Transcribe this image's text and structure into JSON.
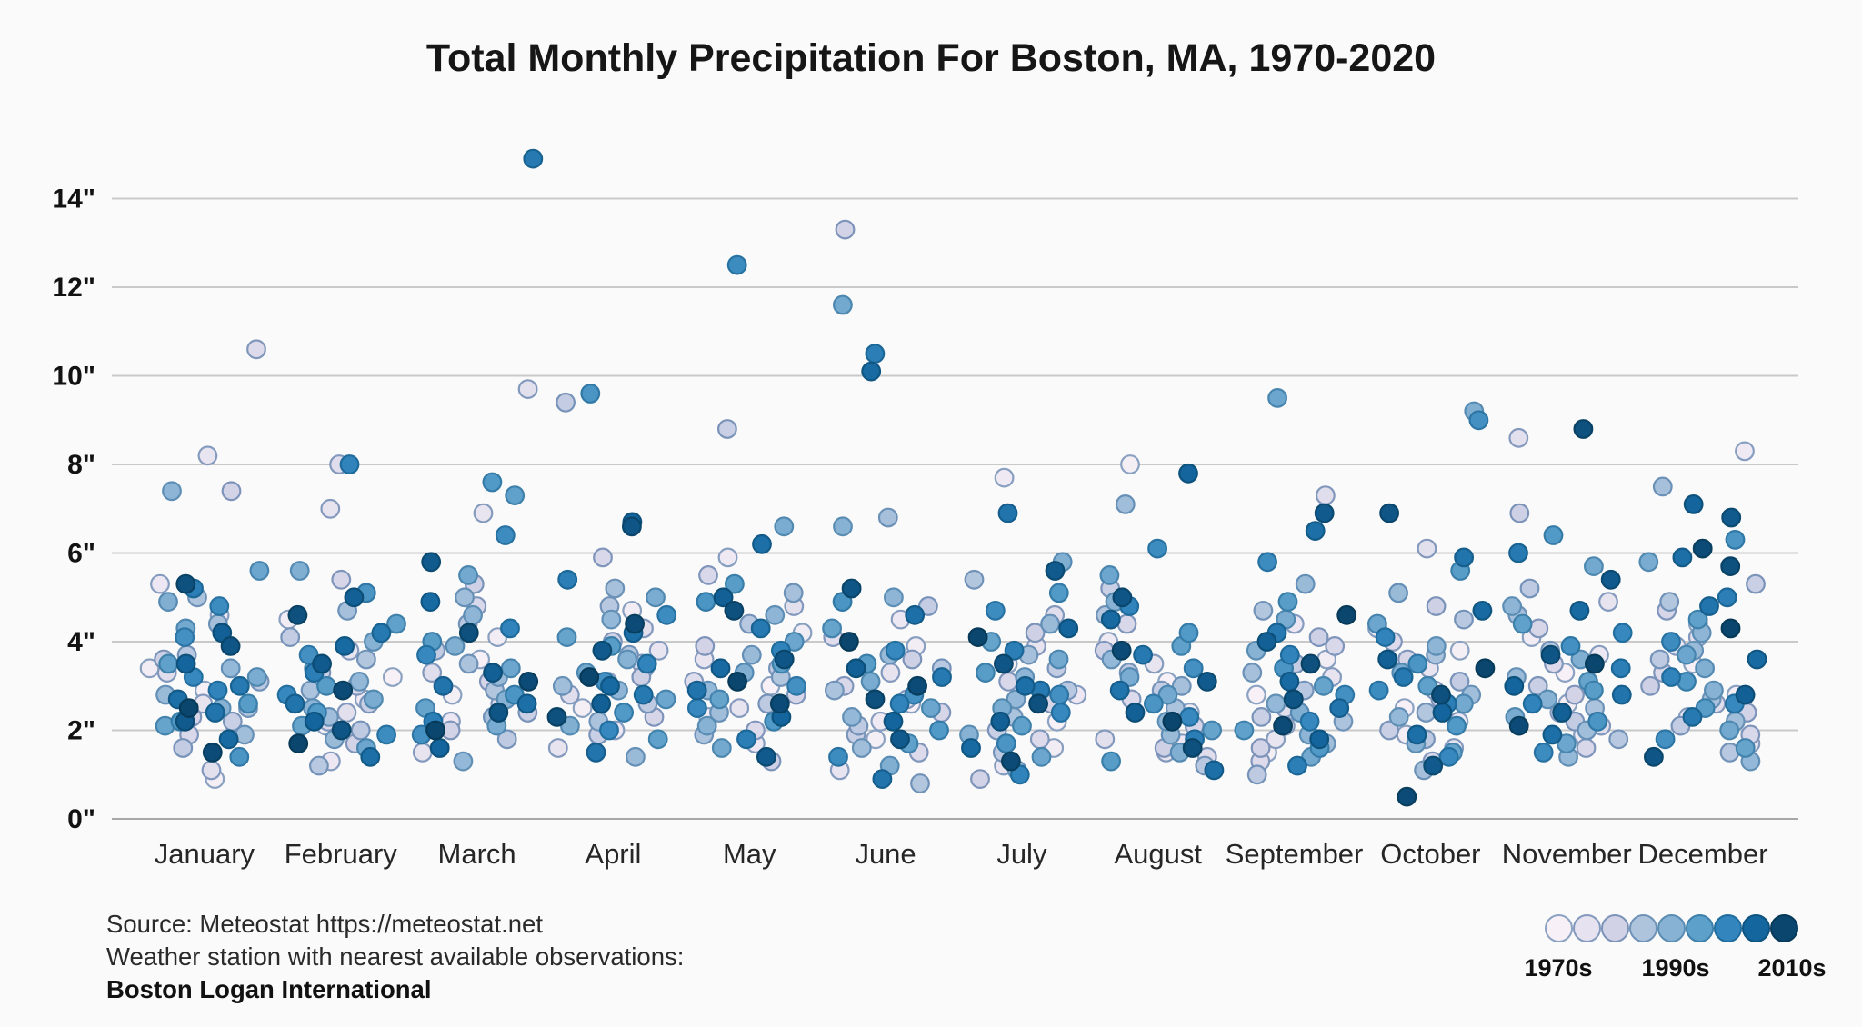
{
  "chart_data": {
    "type": "scatter",
    "title": "Total Monthly Precipitation For Boston, MA, 1970-2020",
    "x_categories": [
      "January",
      "February",
      "March",
      "April",
      "May",
      "June",
      "July",
      "August",
      "September",
      "October",
      "November",
      "December"
    ],
    "year_start": 1970,
    "year_end": 2020,
    "ylim": [
      0,
      15.5
    ],
    "yticks": [
      0,
      2,
      4,
      6,
      8,
      10,
      12,
      14
    ],
    "ytick_labels": [
      "0\"",
      "2\"",
      "4\"",
      "6\"",
      "8\"",
      "10\"",
      "12\"",
      "14\""
    ],
    "grid": "horizontal",
    "legend_position": "bottom-right",
    "color_encoding": "year: 1970s light to 2010s dark",
    "jitter": "random horizontal jitter within month band",
    "series": [
      {
        "month": "January",
        "values": [
          2.9,
          0.9,
          3.4,
          4.6,
          5.3,
          8.2,
          2.6,
          1.1,
          3.3,
          10.6,
          1.9,
          2.3,
          7.4,
          3.6,
          2.2,
          1.6,
          3.1,
          3.7,
          2.5,
          5.0,
          4.4,
          1.9,
          2.8,
          3.4,
          7.4,
          2.5,
          4.9,
          3.2,
          4.3,
          5.6,
          2.1,
          3.5,
          2.6,
          2.2,
          1.4,
          4.1,
          4.8,
          3.2,
          2.9,
          5.2,
          3.0,
          2.4,
          2.7,
          1.8,
          3.5,
          4.2,
          2.2,
          3.9,
          5.3,
          1.5,
          2.5
        ]
      },
      {
        "month": "February",
        "values": [
          3.2,
          2.1,
          4.5,
          2.7,
          1.3,
          3.8,
          7.0,
          2.4,
          8.0,
          3.0,
          2.2,
          5.4,
          1.7,
          3.3,
          2.6,
          4.1,
          2.0,
          1.2,
          3.6,
          2.9,
          4.7,
          2.3,
          1.8,
          3.1,
          2.5,
          4.0,
          5.6,
          2.7,
          3.4,
          1.6,
          2.1,
          4.4,
          3.0,
          2.4,
          5.1,
          3.7,
          1.9,
          2.8,
          8.0,
          3.3,
          4.2,
          2.6,
          1.4,
          3.9,
          2.2,
          5.0,
          3.5,
          2.0,
          4.6,
          2.9,
          1.7
        ]
      },
      {
        "month": "March",
        "values": [
          3.6,
          2.8,
          4.1,
          3.0,
          2.2,
          6.9,
          1.5,
          9.7,
          3.3,
          2.6,
          4.8,
          3.1,
          2.0,
          5.3,
          2.4,
          3.8,
          1.8,
          4.4,
          2.9,
          3.5,
          2.3,
          5.0,
          3.2,
          1.3,
          4.6,
          2.7,
          3.9,
          2.1,
          5.5,
          3.4,
          2.5,
          7.3,
          4.0,
          7.6,
          2.8,
          1.9,
          6.4,
          3.7,
          4.3,
          2.2,
          14.9,
          3.0,
          2.6,
          4.9,
          1.6,
          3.3,
          5.8,
          2.4,
          4.2,
          3.1,
          2.0
        ]
      },
      {
        "month": "April",
        "values": [
          3.4,
          2.5,
          4.7,
          3.1,
          2.0,
          3.8,
          1.6,
          4.3,
          2.8,
          3.5,
          5.9,
          2.3,
          4.0,
          3.2,
          1.9,
          9.4,
          2.6,
          4.8,
          3.7,
          2.2,
          5.2,
          3.0,
          1.4,
          4.5,
          2.9,
          3.6,
          2.1,
          5.0,
          3.3,
          2.7,
          4.1,
          1.8,
          3.9,
          2.4,
          9.6,
          3.1,
          4.6,
          2.0,
          3.5,
          5.4,
          2.8,
          1.5,
          4.2,
          3.0,
          6.7,
          2.6,
          3.8,
          6.6,
          2.3,
          4.4,
          3.2
        ]
      },
      {
        "month": "May",
        "values": [
          3.0,
          2.3,
          4.2,
          5.9,
          1.7,
          3.6,
          2.5,
          4.8,
          3.1,
          2.0,
          5.5,
          2.8,
          3.9,
          1.3,
          8.8,
          3.4,
          2.6,
          4.4,
          3.2,
          1.9,
          5.1,
          2.4,
          3.7,
          2.9,
          4.6,
          2.1,
          3.3,
          6.6,
          1.6,
          4.0,
          2.7,
          3.5,
          5.3,
          2.2,
          4.9,
          3.0,
          12.5,
          2.5,
          3.8,
          1.8,
          4.3,
          2.9,
          6.2,
          3.4,
          2.3,
          5.0,
          1.4,
          3.6,
          4.7,
          2.6,
          3.1
        ]
      },
      {
        "month": "June",
        "values": [
          2.6,
          1.8,
          3.9,
          2.2,
          4.5,
          1.1,
          3.3,
          2.7,
          4.1,
          1.5,
          3.0,
          2.4,
          13.3,
          3.6,
          1.9,
          4.8,
          2.1,
          3.4,
          0.8,
          2.9,
          6.8,
          1.6,
          3.7,
          2.3,
          5.0,
          6.6,
          1.2,
          3.1,
          11.6,
          2.5,
          4.3,
          1.7,
          3.5,
          2.0,
          4.9,
          2.8,
          1.4,
          3.8,
          2.6,
          10.5,
          3.2,
          0.9,
          4.6,
          10.1,
          2.2,
          3.4,
          1.8,
          5.2,
          2.7,
          3.0,
          4.0
        ]
      },
      {
        "month": "July",
        "values": [
          2.2,
          3.5,
          1.6,
          7.7,
          2.8,
          1.2,
          3.9,
          2.4,
          4.6,
          1.8,
          3.1,
          2.6,
          0.9,
          4.2,
          2.0,
          3.4,
          1.5,
          2.9,
          5.4,
          2.3,
          3.7,
          1.1,
          4.4,
          2.7,
          3.2,
          1.9,
          5.8,
          2.5,
          3.6,
          1.4,
          4.0,
          2.1,
          3.3,
          5.1,
          1.7,
          2.8,
          4.7,
          2.4,
          1.0,
          3.8,
          2.9,
          6.9,
          3.0,
          1.6,
          4.3,
          2.2,
          5.6,
          3.5,
          2.6,
          1.3,
          4.1
        ]
      },
      {
        "month": "August",
        "values": [
          3.1,
          8.0,
          2.4,
          4.0,
          1.7,
          3.5,
          1.5,
          1.8,
          1.4,
          2.7,
          4.4,
          2.1,
          3.8,
          1.6,
          5.2,
          2.9,
          3.3,
          1.2,
          4.6,
          2.5,
          3.0,
          7.1,
          1.9,
          3.6,
          2.2,
          4.9,
          1.5,
          3.2,
          2.8,
          5.5,
          2.0,
          3.9,
          1.3,
          4.2,
          2.6,
          3.4,
          6.1,
          2.3,
          4.8,
          1.8,
          3.7,
          2.9,
          1.1,
          4.5,
          7.8,
          2.4,
          3.1,
          5.0,
          1.6,
          3.8,
          2.2
        ]
      },
      {
        "month": "September",
        "values": [
          2.8,
          1.5,
          3.6,
          2.1,
          4.4,
          1.8,
          3.2,
          2.5,
          7.3,
          1.3,
          3.9,
          2.7,
          1.6,
          4.1,
          2.3,
          3.5,
          1.0,
          2.9,
          4.7,
          2.2,
          3.3,
          1.7,
          5.3,
          2.6,
          1.9,
          3.8,
          2.4,
          4.5,
          1.4,
          9.5,
          3.0,
          2.0,
          4.9,
          1.6,
          3.4,
          2.8,
          5.8,
          2.2,
          3.7,
          1.2,
          4.2,
          2.5,
          6.5,
          3.1,
          1.8,
          4.0,
          6.9,
          2.7,
          3.5,
          2.1,
          4.6
        ]
      },
      {
        "month": "October",
        "values": [
          2.5,
          3.8,
          1.9,
          4.3,
          2.2,
          3.4,
          1.6,
          6.1,
          2.9,
          4.0,
          1.3,
          3.6,
          2.7,
          4.8,
          2.0,
          3.1,
          1.8,
          4.5,
          2.4,
          3.7,
          1.1,
          2.8,
          5.1,
          2.3,
          3.9,
          1.7,
          9.2,
          3.3,
          2.6,
          4.4,
          1.5,
          3.0,
          5.6,
          2.1,
          3.5,
          9.0,
          2.9,
          1.4,
          4.1,
          2.6,
          3.2,
          5.9,
          1.9,
          4.7,
          2.4,
          3.6,
          1.2,
          6.9,
          2.8,
          0.5,
          3.4
        ]
      },
      {
        "month": "November",
        "values": [
          3.3,
          2.6,
          4.1,
          1.9,
          3.7,
          2.4,
          4.9,
          8.6,
          2.1,
          3.5,
          1.6,
          4.3,
          2.8,
          6.9,
          3.0,
          2.2,
          5.2,
          1.8,
          3.8,
          2.5,
          4.6,
          2.0,
          3.2,
          1.4,
          4.8,
          2.7,
          3.6,
          2.3,
          5.7,
          1.7,
          3.1,
          4.4,
          2.9,
          6.4,
          2.2,
          3.9,
          1.5,
          4.2,
          2.6,
          3.4,
          6.0,
          2.8,
          1.9,
          4.7,
          3.0,
          2.4,
          5.4,
          3.7,
          8.8,
          2.1,
          3.5
        ]
      },
      {
        "month": "December",
        "values": [
          3.5,
          2.8,
          4.4,
          8.3,
          2.3,
          3.9,
          1.7,
          4.1,
          2.6,
          3.3,
          1.9,
          4.7,
          2.4,
          3.0,
          5.3,
          2.1,
          3.6,
          1.5,
          4.9,
          2.7,
          7.5,
          2.2,
          3.8,
          1.3,
          4.2,
          2.9,
          3.4,
          5.8,
          2.0,
          3.7,
          1.6,
          4.5,
          2.5,
          3.1,
          6.3,
          1.8,
          4.0,
          2.6,
          3.2,
          5.0,
          2.3,
          4.8,
          5.9,
          3.6,
          7.1,
          2.8,
          6.8,
          1.4,
          5.7,
          6.1,
          4.3
        ]
      }
    ],
    "legend": {
      "labels": [
        "1970s",
        "1990s",
        "2010s"
      ],
      "swatch_fills": [
        "#f7f0f6",
        "#e6e2ef",
        "#d1d2e6",
        "#aec4dd",
        "#88b2d4",
        "#5da0ca",
        "#3386bd",
        "#14669f",
        "#0b466f"
      ],
      "swatch_strokes": [
        "#8ba2c2",
        "#8399bd",
        "#7c93b9",
        "#6f92b8",
        "#5a8db4",
        "#3d80ab",
        "#206d9f",
        "#0d537f",
        "#073a58"
      ]
    }
  },
  "footer": {
    "source_line": "Source: Meteostat https://meteostat.net",
    "station_line": "Weather station with nearest available observations:",
    "station_name": "Boston Logan International"
  },
  "colors": {
    "background": "#fbfafa",
    "gridline": "#c9c9c9",
    "baseline": "#a8a8a8",
    "title_text": "#161616",
    "tick_text": "#121212"
  }
}
